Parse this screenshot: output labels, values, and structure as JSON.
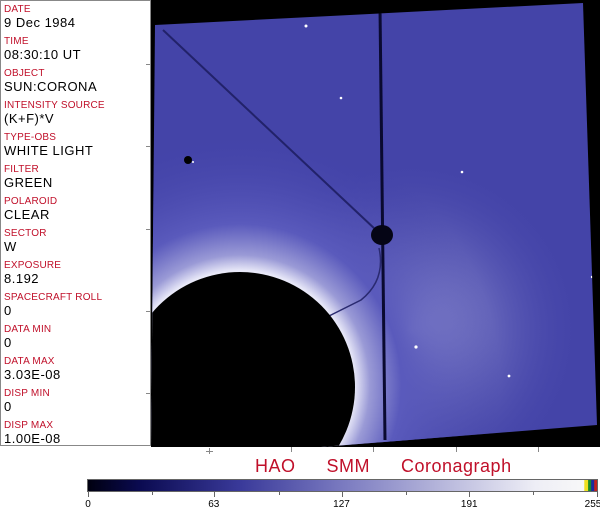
{
  "header_fields": [
    {
      "label": "DATE",
      "value": "9 Dec 1984"
    },
    {
      "label": "TIME",
      "value": "08:30:10 UT"
    },
    {
      "label": "OBJECT",
      "value": "SUN:CORONA"
    },
    {
      "label": "INTENSITY SOURCE",
      "value": "(K+F)*V"
    },
    {
      "label": "TYPE-OBS",
      "value": "WHITE LIGHT"
    },
    {
      "label": "FILTER",
      "value": "GREEN"
    },
    {
      "label": "POLAROID",
      "value": "CLEAR"
    },
    {
      "label": "SECTOR",
      "value": "W"
    },
    {
      "label": "EXPOSURE",
      "value": "8.192"
    },
    {
      "label": "SPACECRAFT ROLL",
      "value": "0"
    },
    {
      "label": "DATA MIN",
      "value": "0"
    },
    {
      "label": "DATA MAX",
      "value": "3.03E-08"
    },
    {
      "label": "DISP MIN",
      "value": "0"
    },
    {
      "label": "DISP MAX",
      "value": "1.00E-08"
    }
  ],
  "title": "HAO  SMM  Coronagraph",
  "colorbar": {
    "ticks": [
      "0",
      "63",
      "127",
      "191",
      "255"
    ],
    "min": 0,
    "max": 255,
    "colormap": "blue-white",
    "accent": "#c0102a"
  }
}
